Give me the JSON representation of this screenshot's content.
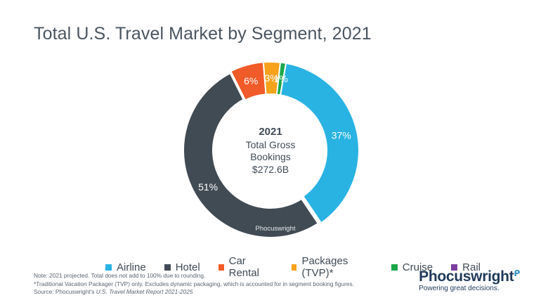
{
  "header": {
    "title": "Total U.S. Travel Market by Segment, 2021"
  },
  "center": {
    "year": "2021",
    "line1": "Total Gross",
    "line2": "Bookings",
    "value": "$272.6B"
  },
  "watermark": "Phocuswright",
  "chart_data": {
    "type": "pie",
    "title": "Total U.S. Travel Market by Segment, 2021",
    "series": [
      {
        "name": "Airline",
        "value": 37,
        "label": "37%",
        "color": "#29b3e3"
      },
      {
        "name": "Hotel",
        "value": 51,
        "label": "51%",
        "color": "#414b54"
      },
      {
        "name": "Car Rental",
        "value": 6,
        "label": "6%",
        "color": "#f15a29"
      },
      {
        "name": "Packages (TVP)*",
        "value": 3,
        "label": "3%",
        "color": "#f7a21b"
      },
      {
        "name": "Cruise",
        "value": 1,
        "label": "1%",
        "color": "#1aa84a"
      },
      {
        "name": "Rail",
        "value": 0,
        "label": "",
        "color": "#7b3fa0"
      }
    ],
    "legend_position": "bottom"
  },
  "legend": [
    {
      "label": "Airline",
      "color": "#29b3e3"
    },
    {
      "label": "Hotel",
      "color": "#414b54"
    },
    {
      "label": "Car Rental",
      "color": "#f15a29"
    },
    {
      "label": "Packages (TVP)*",
      "color": "#f7a21b"
    },
    {
      "label": "Cruise",
      "color": "#1aa84a"
    },
    {
      "label": "Rail",
      "color": "#7b3fa0"
    }
  ],
  "notes": {
    "line1": "Note: 2021 projected. Total does not add to 100% due to rounding.",
    "line2": "*Traditional Vacation Packager (TVP) only. Excludes dynamic packaging, which is accounted for in segment booking figures.",
    "source_prefix": "Source: Phocuswright's ",
    "source_title": "U.S. Travel Market Report 2021-2025"
  },
  "brand": {
    "name": "Phocuswright",
    "tagline": "Powering great decisions."
  }
}
